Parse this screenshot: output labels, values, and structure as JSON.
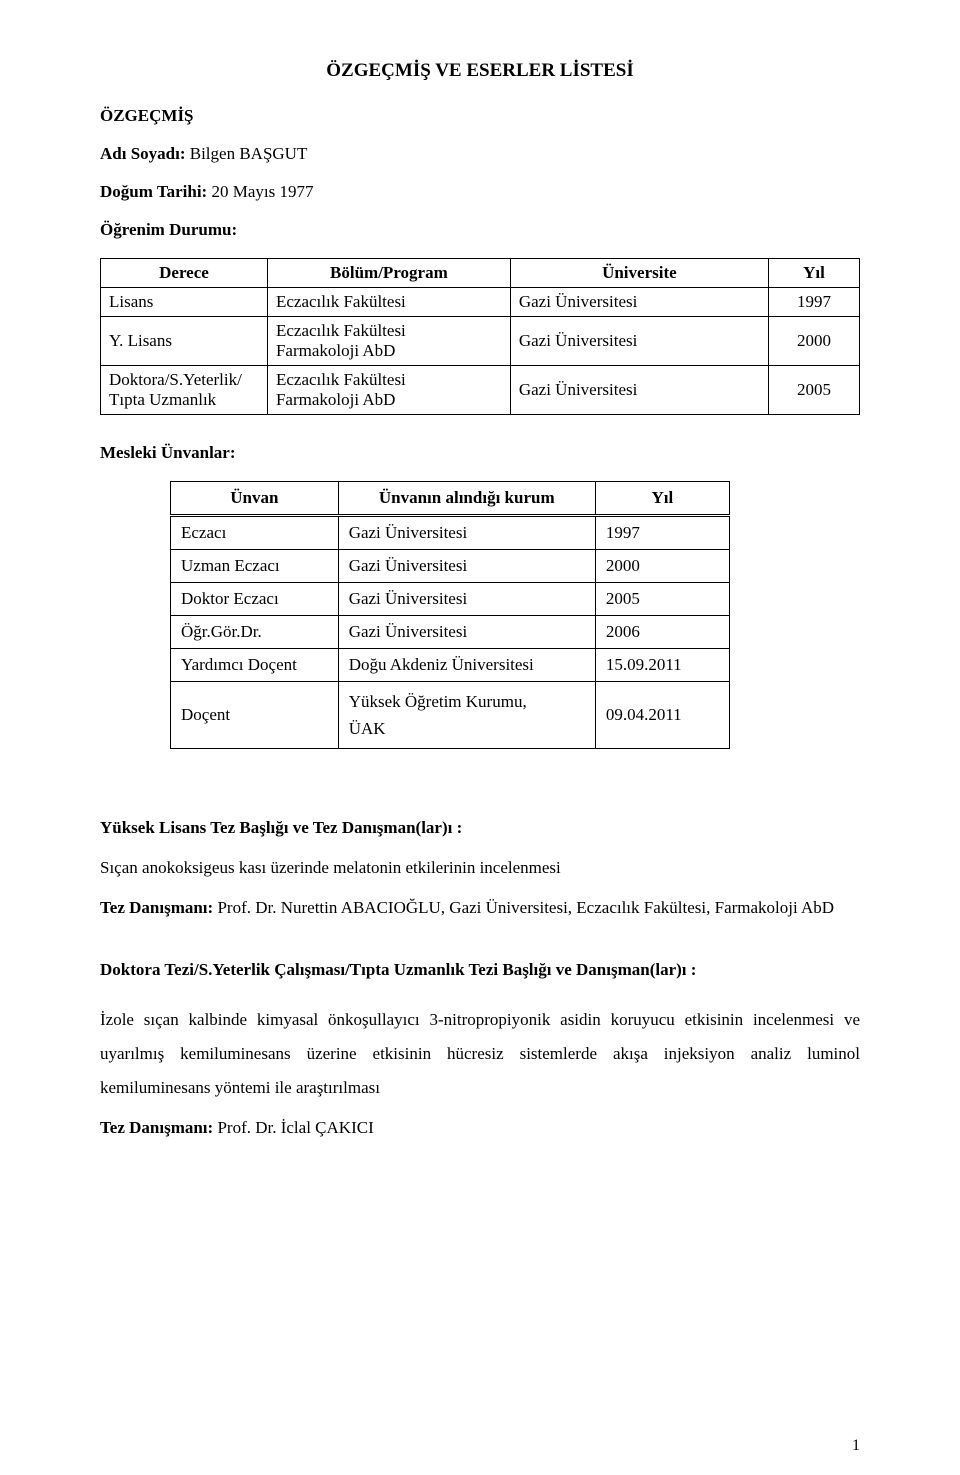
{
  "doc": {
    "title": "ÖZGEÇMİŞ VE ESERLER LİSTESİ",
    "section_cv": "ÖZGEÇMİŞ",
    "name_label": "Adı Soyadı:",
    "name_value": "Bilgen BAŞGUT",
    "dob_label": "Doğum Tarihi:",
    "dob_value": "20 Mayıs 1977",
    "edu_label": "Öğrenim Durumu:"
  },
  "edu_table": {
    "headers": [
      "Derece",
      "Bölüm/Program",
      "Üniversite",
      "Yıl"
    ],
    "rows": [
      {
        "degree": "Lisans",
        "program": "Eczacılık Fakültesi",
        "university": "Gazi  Üniversitesi",
        "year": "1997"
      },
      {
        "degree": "Y. Lisans",
        "program": "Eczacılık Fakültesi\nFarmakoloji AbD",
        "university": "Gazi  Üniversitesi",
        "year": "2000"
      },
      {
        "degree": "Doktora/S.Yeterlik/\nTıpta Uzmanlık",
        "program": "Eczacılık Fakültesi\nFarmakoloji AbD",
        "university": "Gazi  Üniversitesi",
        "year": "2005"
      }
    ]
  },
  "titles_section": {
    "heading": "Mesleki Ünvanlar:",
    "headers": [
      "Ünvan",
      "Ünvanın alındığı kurum",
      "Yıl"
    ],
    "rows": [
      {
        "title": "Eczacı",
        "inst": "Gazi  Üniversitesi",
        "year": "1997"
      },
      {
        "title": "Uzman Eczacı",
        "inst": "Gazi  Üniversitesi",
        "year": "2000"
      },
      {
        "title": "Doktor Eczacı",
        "inst": "Gazi  Üniversitesi",
        "year": "2005"
      },
      {
        "title": "Öğr.Gör.Dr.",
        "inst": "Gazi Üniversitesi",
        "year": "2006"
      },
      {
        "title": "Yardımcı Doçent",
        "inst": "Doğu Akdeniz Üniversitesi",
        "year": "15.09.2011"
      },
      {
        "title": "Doçent",
        "inst": "Yüksek Öğretim Kurumu,\nÜAK",
        "year": "09.04.2011"
      }
    ]
  },
  "thesis": {
    "ms_heading": "Yüksek Lisans Tez Başlığı ve Tez Danışman(lar)ı  :",
    "ms_title": "Sıçan anokoksigeus kası üzerinde melatonin etkilerinin incelenmesi",
    "advisor_label": "Tez Danışmanı:",
    "ms_advisor_rest": " Prof. Dr. Nurettin ABACIOĞLU, Gazi Üniversitesi, Eczacılık Fakültesi, Farmakoloji AbD",
    "phd_heading": "Doktora Tezi/S.Yeterlik Çalışması/Tıpta Uzmanlık Tezi Başlığı ve  Danışman(lar)ı :",
    "phd_body": "İzole sıçan kalbinde kimyasal önkoşullayıcı 3-nitropropiyonik asidin koruyucu etkisinin incelenmesi ve uyarılmış kemiluminesans üzerine etkisinin hücresiz sistemlerde akışa injeksiyon analiz luminol kemiluminesans yöntemi ile araştırılması",
    "phd_advisor_rest": " Prof. Dr. İclal ÇAKICI"
  },
  "page_number": "1"
}
